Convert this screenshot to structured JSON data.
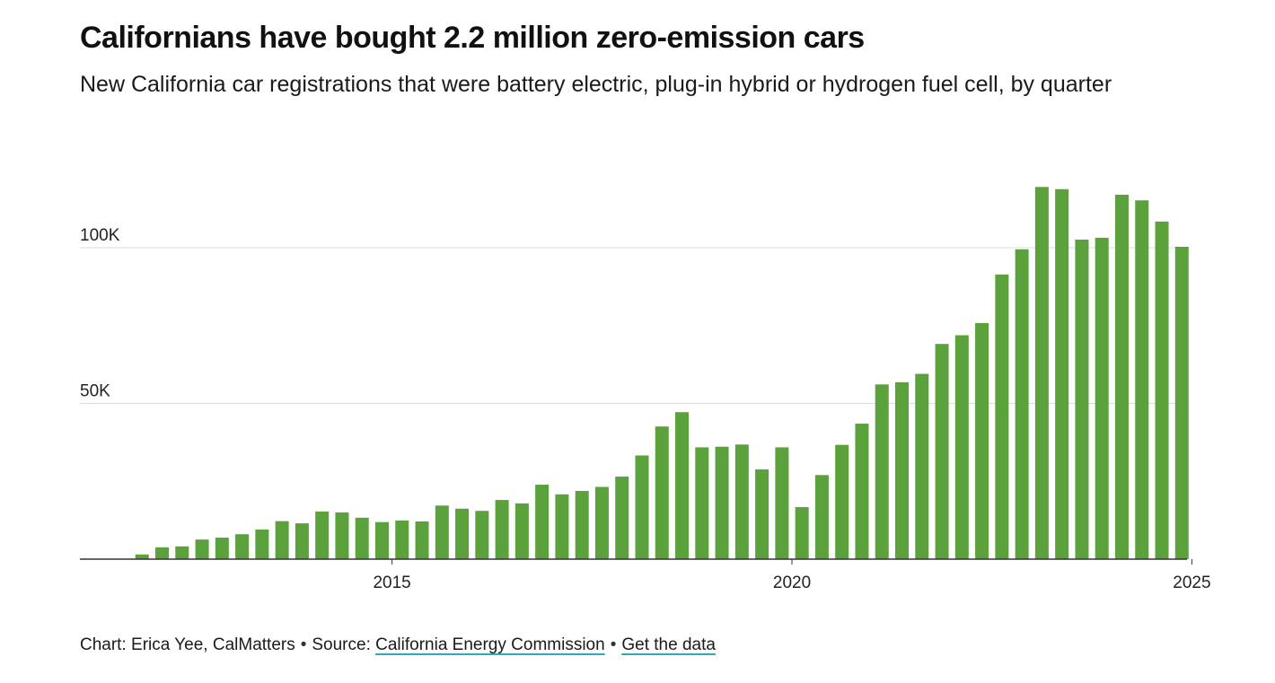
{
  "title": "Californians have bought 2.2 million zero-emission cars",
  "subtitle": "New California car registrations that were battery electric, plug-in hybrid or hydrogen fuel cell, by quarter",
  "footer": {
    "credit": "Chart: Erica Yee, CalMatters",
    "separator": "•",
    "source_prefix": "Source:",
    "source_link": "California Energy Commission",
    "data_link": "Get the data"
  },
  "colors": {
    "bar": "#5ba13c",
    "gridline": "#dcdcdc",
    "axis": "#333333",
    "link_underline": "#2ea8b5"
  },
  "chart_data": {
    "type": "bar",
    "categories": [
      "2011 Q1",
      "2011 Q2",
      "2011 Q3",
      "2011 Q4",
      "2012 Q1",
      "2012 Q2",
      "2012 Q3",
      "2012 Q4",
      "2013 Q1",
      "2013 Q2",
      "2013 Q3",
      "2013 Q4",
      "2014 Q1",
      "2014 Q2",
      "2014 Q3",
      "2014 Q4",
      "2015 Q1",
      "2015 Q2",
      "2015 Q3",
      "2015 Q4",
      "2016 Q1",
      "2016 Q2",
      "2016 Q3",
      "2016 Q4",
      "2017 Q1",
      "2017 Q2",
      "2017 Q3",
      "2017 Q4",
      "2018 Q1",
      "2018 Q2",
      "2018 Q3",
      "2018 Q4",
      "2019 Q1",
      "2019 Q2",
      "2019 Q3",
      "2019 Q4",
      "2020 Q1",
      "2020 Q2",
      "2020 Q3",
      "2020 Q4",
      "2021 Q1",
      "2021 Q2",
      "2021 Q3",
      "2021 Q4",
      "2022 Q1",
      "2022 Q2",
      "2022 Q3",
      "2022 Q4",
      "2023 Q1",
      "2023 Q2",
      "2023 Q3",
      "2023 Q4",
      "2024 Q1",
      "2024 Q2",
      "2024 Q3",
      "2024 Q4"
    ],
    "values": [
      0,
      0,
      0,
      1500,
      3800,
      4100,
      6300,
      6900,
      8000,
      9500,
      12200,
      11500,
      15300,
      15000,
      13300,
      11900,
      12400,
      12100,
      17200,
      16200,
      15500,
      19000,
      17900,
      23900,
      20800,
      21900,
      23200,
      26500,
      33300,
      42600,
      47200,
      35900,
      36100,
      36800,
      28800,
      35900,
      16700,
      27000,
      36700,
      43500,
      56100,
      56800,
      59500,
      69100,
      71900,
      75800,
      91400,
      99500,
      119500,
      118800,
      102600,
      103200,
      117000,
      115200,
      108400,
      100300
    ],
    "x_ticks": [
      "2015",
      "2020",
      "2025"
    ],
    "y_ticks": [
      {
        "value": 50000,
        "label": "50K"
      },
      {
        "value": 100000,
        "label": "100K"
      }
    ],
    "ylim": [
      0,
      120000
    ],
    "grid": true,
    "legend": "none"
  }
}
